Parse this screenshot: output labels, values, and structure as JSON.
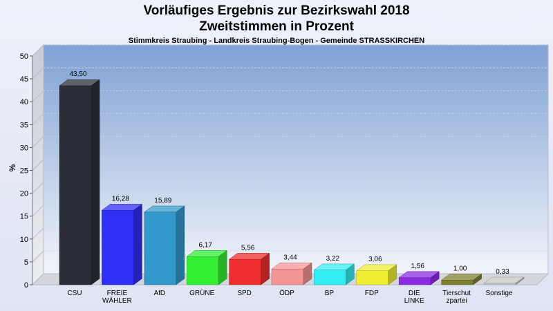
{
  "chart_data": {
    "type": "bar",
    "title": "Vorläufiges Ergebnis zur Bezirkswahl 2018",
    "subtitle": "Zweitstimmen in Prozent",
    "subsubtitle": "Stimmkreis Straubing - Landkreis Straubing-Bogen - Gemeinde STRASSKIRCHEN",
    "xlabel": "",
    "ylabel": "%",
    "ylim": [
      0,
      50
    ],
    "yticks": [
      0,
      5,
      10,
      15,
      20,
      25,
      30,
      35,
      40,
      45,
      50
    ],
    "grid": true,
    "categories": [
      "CSU",
      "FREIE WÄHLER",
      "AfD",
      "GRÜNE",
      "SPD",
      "ÖDP",
      "BP",
      "FDP",
      "DIE LINKE",
      "Tierschutzpartei",
      "Sonstige"
    ],
    "category_labels": [
      [
        "CSU"
      ],
      [
        "FREIE",
        "WÄHLER"
      ],
      [
        "AfD"
      ],
      [
        "GRÜNE"
      ],
      [
        "SPD"
      ],
      [
        "ÖDP"
      ],
      [
        "BP"
      ],
      [
        "FDP"
      ],
      [
        "DIE",
        "LINKE"
      ],
      [
        "Tierschut",
        "zpartei"
      ],
      [
        "Sonstige"
      ]
    ],
    "values": [
      43.5,
      16.28,
      15.89,
      6.17,
      5.56,
      3.44,
      3.22,
      3.06,
      1.56,
      1.0,
      0.33
    ],
    "value_labels": [
      "43,50",
      "16,28",
      "15,89",
      "6,17",
      "5,56",
      "3,44",
      "3,22",
      "3,06",
      "1,56",
      "1,00",
      "0,33"
    ],
    "colors": [
      "#2b2e38",
      "#2f2ff5",
      "#3399cc",
      "#33ee33",
      "#ee2e2e",
      "#f49494",
      "#33eef3",
      "#eeee33",
      "#8a2be2",
      "#808033",
      "#c8c8c8"
    ]
  }
}
